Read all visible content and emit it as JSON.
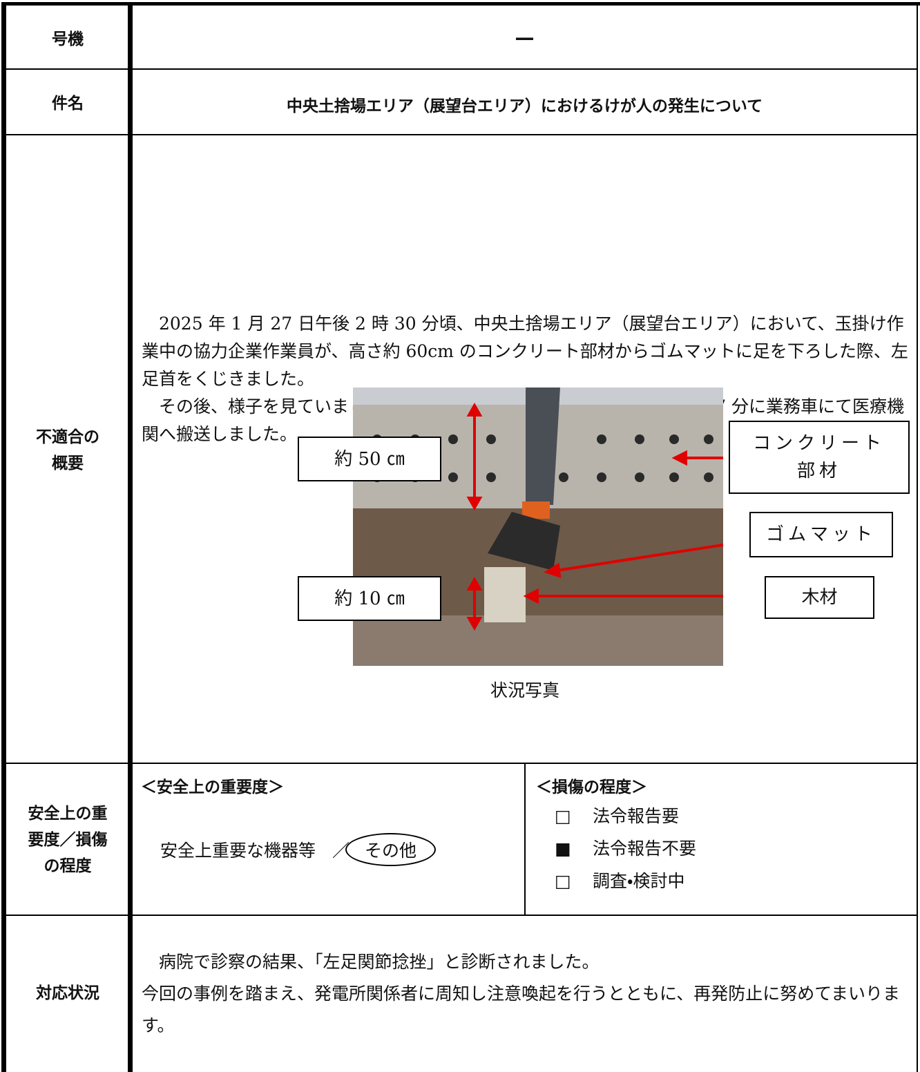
{
  "unit": {
    "label": "号機",
    "value": "—"
  },
  "subject": {
    "label": "件名",
    "value": "中央土捨場エリア（展望台エリア）におけるけが人の発生について"
  },
  "summary": {
    "label": "不適合の\n概要",
    "paragraphs": [
      "2025 年 1 月 27 日午後 2 時 30 分頃、中央土捨場エリア（展望台エリア）において、玉掛け作業中の協力企業作業員が、高さ約 60cm のコンクリート部材からゴムマットに足を下ろした際、左足首をくじきました。",
      "その後、様子を見ていましたが、痛みが引かないことから、午後 5 時 47 分に業務車にて医療機関へ搬送しました。"
    ],
    "photo": {
      "callouts": [
        "約 50 ㎝",
        "約 10 ㎝",
        "コンクリート\n部材",
        "ゴムマット",
        "木材"
      ],
      "caption": "状況写真"
    }
  },
  "severity": {
    "label": "安全上の重\n要度／損傷\nの程度",
    "safety": {
      "heading": "＜安全上の重要度＞",
      "option_a": "安全上重要な機器等",
      "separator": "／",
      "option_b": "その他"
    },
    "damage": {
      "heading": "＜損傷の程度＞",
      "items": [
        {
          "mark": "□",
          "text": "法令報告要"
        },
        {
          "mark": "■",
          "text": "法令報告不要"
        },
        {
          "mark": "□",
          "text": "調査・検討中"
        }
      ]
    }
  },
  "response": {
    "label": "対応状況",
    "paragraphs": [
      "病院で診察の結果、「左足関節捻挫」と診断されました。",
      "今回の事例を踏まえ、発電所関係者に周知し注意喚起を行うとともに、再発防止に努めてまいります。"
    ]
  }
}
